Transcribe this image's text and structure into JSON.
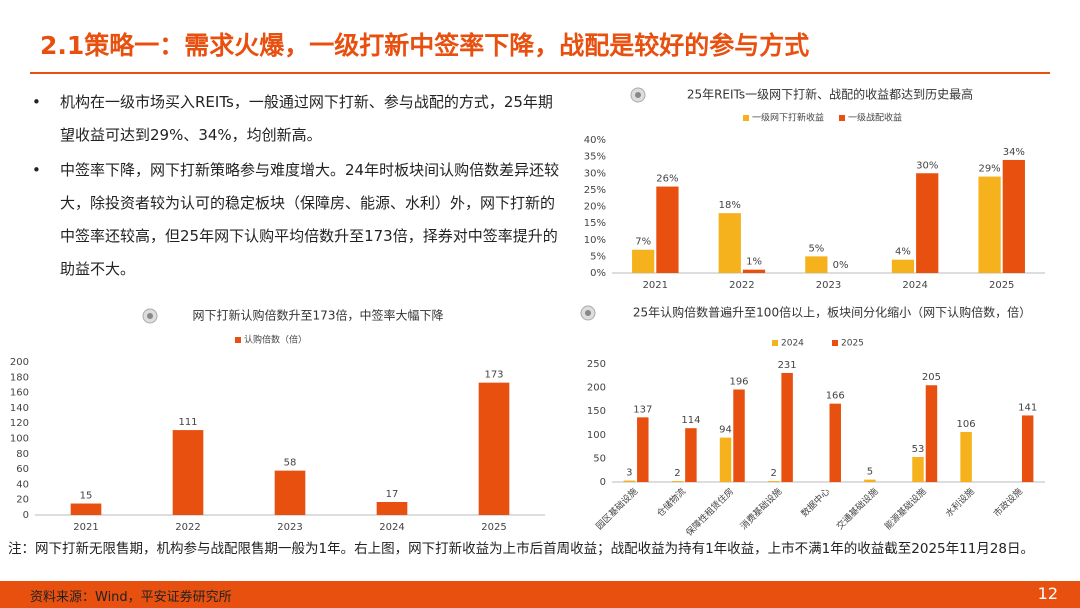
{
  "header": {
    "title": "2.1策略一：需求火爆，一级打新中签率下降，战配是较好的参与方式"
  },
  "bullets": [
    "机构在一级市场买入REITs，一般通过网下打新、参与战配的方式，25年期望收益可达到29%、34%，均创新高。",
    "中签率下降，网下打新策略参与难度增大。24年时板块间认购倍数差异还较大，除投资者较为认可的稳定板块（保障房、能源、水利）外，网下打新的中签率还较高，但25年网下认购平均倍数升至173倍，择券对中签率提升的助益不大。"
  ],
  "chart_data": [
    {
      "type": "bar",
      "title": "25年REITs一级网下打新、战配的收益都达到历史最高",
      "categories": [
        "2021",
        "2022",
        "2023",
        "2024",
        "2025"
      ],
      "series": [
        {
          "name": "一级网下打新收益",
          "color": "#f5b21c",
          "values": [
            7,
            18,
            5,
            4,
            29
          ],
          "value_labels": [
            "7%",
            "18%",
            "5%",
            "4%",
            "29%"
          ]
        },
        {
          "name": "一级战配收益",
          "color": "#e8500f",
          "values": [
            26,
            1,
            0,
            30,
            34
          ],
          "value_labels": [
            "26%",
            "1%",
            "0%",
            "30%",
            "34%"
          ]
        }
      ],
      "ylim": [
        0,
        40
      ],
      "yticks": [
        {
          "value": 0,
          "label": "0%"
        },
        {
          "value": 5,
          "label": "5%"
        },
        {
          "value": 10,
          "label": "10%"
        },
        {
          "value": 15,
          "label": "15%"
        },
        {
          "value": 20,
          "label": "20%"
        },
        {
          "value": 25,
          "label": "25%"
        },
        {
          "value": 30,
          "label": "30%"
        },
        {
          "value": 35,
          "label": "35%"
        },
        {
          "value": 40,
          "label": "40%"
        }
      ],
      "legend": "top"
    },
    {
      "type": "bar",
      "title": "网下打新认购倍数升至173倍，中签率大幅下降",
      "categories": [
        "2021",
        "2022",
        "2023",
        "2024",
        "2025"
      ],
      "series": [
        {
          "name": "认购倍数（倍）",
          "color": "#e8500f",
          "values": [
            15,
            111,
            58,
            17,
            173
          ]
        }
      ],
      "ylim": [
        0,
        200
      ],
      "yticks": [
        0,
        20,
        40,
        60,
        80,
        100,
        120,
        140,
        160,
        180,
        200
      ],
      "legend": "top-left"
    },
    {
      "type": "bar",
      "title": "25年认购倍数普遍升至100倍以上，板块间分化缩小（网下认购倍数，倍）",
      "categories": [
        "园区基础设施",
        "仓储物流",
        "保障性租赁住房",
        "消费基础设施",
        "数据中心",
        "交通基础设施",
        "能源基础设施",
        "水利设施",
        "市政设施"
      ],
      "series": [
        {
          "name": "2024",
          "color": "#f5b21c",
          "values": [
            3,
            2,
            94,
            2,
            null,
            5,
            53,
            106,
            null
          ]
        },
        {
          "name": "2025",
          "color": "#e8500f",
          "values": [
            137,
            114,
            196,
            231,
            166,
            null,
            205,
            null,
            141
          ]
        }
      ],
      "ylim": [
        0,
        250
      ],
      "yticks": [
        0,
        50,
        100,
        150,
        200,
        250
      ],
      "legend": "top"
    }
  ],
  "footnote": "注：网下打新无限售期，机构参与战配限售期一般为1年。右上图，网下打新收益为上市后首周收益；战配收益为持有1年收益，上市不满1年的收益截至2025年11月28日。",
  "footer": {
    "source": "资料来源：Wind，平安证券研究所",
    "page": "12"
  }
}
